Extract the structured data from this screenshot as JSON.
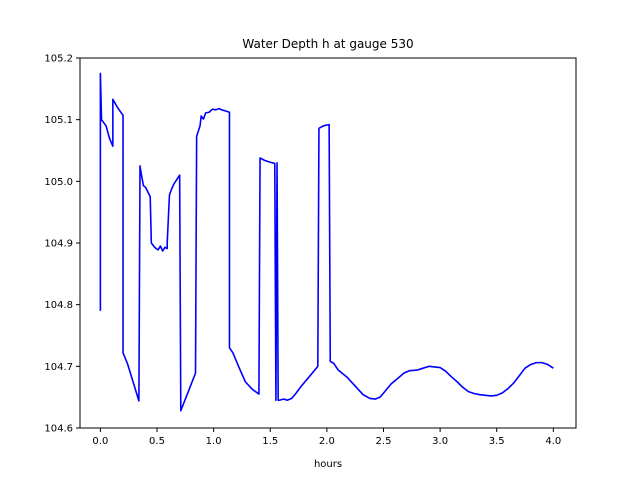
{
  "chart_data": {
    "type": "line",
    "title": "Water Depth h at gauge 530",
    "xlabel": "hours",
    "ylabel": "",
    "xlim": [
      -0.18,
      4.2
    ],
    "ylim": [
      104.6,
      105.2
    ],
    "xticks": [
      0.0,
      0.5,
      1.0,
      1.5,
      2.0,
      2.5,
      3.0,
      3.5,
      4.0
    ],
    "xtick_labels": [
      "0.0",
      "0.5",
      "1.0",
      "1.5",
      "2.0",
      "2.5",
      "3.0",
      "3.5",
      "4.0"
    ],
    "yticks": [
      104.6,
      104.7,
      104.8,
      104.9,
      105.0,
      105.1,
      105.2
    ],
    "ytick_labels": [
      "104.6",
      "104.7",
      "104.8",
      "104.9",
      "105.0",
      "105.1",
      "105.2"
    ],
    "grid": false,
    "legend": "none",
    "series": [
      {
        "name": "",
        "color": "#0000ff",
        "x": [
          0.0,
          0.0,
          0.01,
          0.05,
          0.08,
          0.11,
          0.11,
          0.15,
          0.2,
          0.2,
          0.24,
          0.28,
          0.34,
          0.35,
          0.36,
          0.38,
          0.4,
          0.44,
          0.45,
          0.48,
          0.5,
          0.51,
          0.53,
          0.55,
          0.57,
          0.59,
          0.59,
          0.61,
          0.63,
          0.65,
          0.7,
          0.71,
          0.84,
          0.85,
          0.88,
          0.89,
          0.91,
          0.93,
          0.96,
          0.99,
          1.02,
          1.05,
          1.07,
          1.09,
          1.14,
          1.14,
          1.17,
          1.22,
          1.28,
          1.34,
          1.4,
          1.41,
          1.45,
          1.5,
          1.54,
          1.55,
          1.56,
          1.57,
          1.58,
          1.62,
          1.65,
          1.69,
          1.73,
          1.77,
          1.83,
          1.92,
          1.93,
          1.97,
          2.02,
          2.03,
          2.06,
          2.1,
          2.18,
          2.25,
          2.32,
          2.38,
          2.43,
          2.47,
          2.52,
          2.57,
          2.63,
          2.68,
          2.73,
          2.8,
          2.85,
          2.9,
          2.95,
          3.0,
          3.05,
          3.1,
          3.15,
          3.2,
          3.25,
          3.3,
          3.35,
          3.4,
          3.45,
          3.5,
          3.55,
          3.6,
          3.65,
          3.7,
          3.75,
          3.8,
          3.85,
          3.9,
          3.95,
          4.0
        ],
        "y": [
          104.79,
          105.175,
          105.1,
          105.09,
          105.07,
          105.057,
          105.133,
          105.12,
          105.107,
          104.722,
          104.704,
          104.68,
          104.644,
          105.025,
          105.013,
          104.993,
          104.99,
          104.975,
          104.9,
          104.893,
          104.89,
          104.889,
          104.895,
          104.887,
          104.893,
          104.891,
          104.9,
          104.978,
          104.988,
          104.996,
          105.01,
          104.628,
          104.689,
          105.073,
          105.09,
          105.106,
          105.101,
          105.111,
          105.112,
          105.117,
          105.116,
          105.118,
          105.116,
          105.115,
          105.112,
          104.73,
          104.722,
          104.7,
          104.675,
          104.663,
          104.655,
          105.038,
          105.034,
          105.031,
          105.029,
          104.645,
          105.03,
          104.645,
          104.645,
          104.647,
          104.645,
          104.648,
          104.657,
          104.667,
          104.68,
          104.7,
          105.086,
          105.09,
          105.092,
          104.708,
          104.705,
          104.694,
          104.682,
          104.668,
          104.654,
          104.648,
          104.647,
          104.65,
          104.661,
          104.672,
          104.681,
          104.689,
          104.693,
          104.694,
          104.697,
          104.7,
          104.699,
          104.698,
          104.692,
          104.683,
          104.675,
          104.666,
          104.659,
          104.656,
          104.654,
          104.653,
          104.652,
          104.653,
          104.657,
          104.664,
          104.673,
          104.685,
          104.697,
          104.703,
          104.706,
          104.706,
          104.703,
          104.697
        ]
      }
    ]
  }
}
